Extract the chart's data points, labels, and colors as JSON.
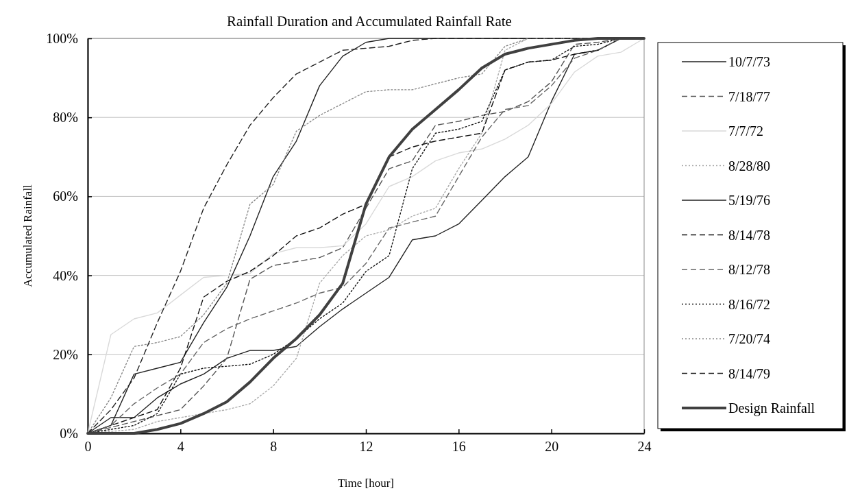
{
  "chart_data": {
    "type": "line",
    "title": "Rainfall Duration and Accumulated Rainfall Rate",
    "xlabel": "Time [hour]",
    "ylabel": "Accumulated Rainfall",
    "x": [
      0,
      1,
      2,
      3,
      4,
      5,
      6,
      7,
      8,
      9,
      10,
      11,
      12,
      13,
      14,
      15,
      16,
      17,
      18,
      19,
      20,
      21,
      22,
      23,
      24
    ],
    "xlim": [
      0,
      24
    ],
    "xticks": [
      0,
      4,
      8,
      12,
      16,
      20,
      24
    ],
    "ylim": [
      0,
      100
    ],
    "yticks": [
      {
        "value": 0,
        "label": "0%"
      },
      {
        "value": 20,
        "label": "20%"
      },
      {
        "value": 40,
        "label": "40%"
      },
      {
        "value": 60,
        "label": "60%"
      },
      {
        "value": 80,
        "label": "80%"
      },
      {
        "value": 100,
        "label": "100%"
      }
    ],
    "grid": "y",
    "legend": "right",
    "marker": "none",
    "series": [
      {
        "name": "10/7/73",
        "color": "#222222",
        "line_style": "solid",
        "values": [
          0,
          4,
          4,
          9,
          12.5,
          15,
          19,
          21,
          21,
          22,
          27,
          31.5,
          35.5,
          39.5,
          49,
          50,
          53,
          59,
          65,
          70,
          84,
          96,
          97,
          100,
          100
        ]
      },
      {
        "name": "7/18/77",
        "color": "#555555",
        "line_style": "dashed",
        "values": [
          0,
          1.5,
          3,
          4.5,
          6,
          12,
          19,
          39,
          42.5,
          43.5,
          44.5,
          47,
          57,
          67,
          69,
          78,
          79,
          80.5,
          81.5,
          84,
          89,
          98.5,
          99,
          100,
          100
        ]
      },
      {
        "name": "7/7/72",
        "color": "#d9d9d9",
        "line_style": "solid",
        "values": [
          0,
          25,
          29,
          30.5,
          35,
          39.5,
          40,
          40.5,
          45.5,
          47,
          47,
          47.5,
          53,
          62.5,
          65,
          69,
          71,
          72,
          74.5,
          78,
          83.5,
          91.5,
          95.5,
          96.5,
          100
        ]
      },
      {
        "name": "8/28/80",
        "color": "#aaaaaa",
        "line_style": "dotted",
        "values": [
          0,
          0.5,
          1,
          3,
          4,
          5,
          6,
          7.5,
          12,
          19,
          38,
          45,
          50,
          51.5,
          55,
          57,
          67,
          76,
          97,
          100,
          100,
          100,
          100,
          100,
          100
        ]
      },
      {
        "name": "5/19/76",
        "color": "#222222",
        "line_style": "solid",
        "values": [
          0,
          2,
          15,
          16.5,
          18,
          28,
          37,
          50,
          65,
          74,
          88,
          95.5,
          99,
          100,
          100,
          100,
          100,
          100,
          100,
          100,
          100,
          100,
          100,
          100,
          100
        ]
      },
      {
        "name": "8/14/78",
        "color": "#111111",
        "line_style": "dashed",
        "values": [
          0,
          2,
          4,
          6,
          16.5,
          34.5,
          38.5,
          41,
          45,
          50,
          52,
          55.5,
          58,
          70,
          72.5,
          74,
          75,
          76,
          92,
          94,
          94.5,
          96,
          97,
          100,
          100
        ]
      },
      {
        "name": "8/12/78",
        "color": "#666666",
        "line_style": "dashed",
        "values": [
          0,
          2,
          7.5,
          11.5,
          15,
          23,
          26.5,
          29,
          31,
          33,
          35.5,
          37,
          43,
          52,
          53.5,
          55,
          65,
          75,
          82,
          83,
          88,
          95,
          97,
          100,
          100
        ]
      },
      {
        "name": "8/16/72",
        "color": "#111111",
        "line_style": "dotted",
        "values": [
          0,
          1,
          2,
          5,
          15,
          16.5,
          17,
          17.5,
          20,
          24,
          29,
          33,
          41,
          45,
          67,
          76,
          77,
          79,
          92,
          94,
          94.5,
          98,
          98.5,
          100,
          100
        ]
      },
      {
        "name": "7/20/74",
        "color": "#888888",
        "line_style": "dotted",
        "values": [
          0,
          9,
          22,
          23,
          24.5,
          30,
          38,
          58,
          63,
          76.5,
          80.5,
          83.5,
          86.5,
          87,
          87,
          88.5,
          90,
          91,
          98,
          100,
          100,
          100,
          100,
          100,
          100
        ]
      },
      {
        "name": "8/14/79",
        "color": "#222222",
        "line_style": "dashed",
        "values": [
          0,
          6,
          14,
          28,
          41,
          57,
          68,
          78,
          85,
          91,
          94,
          97,
          97.5,
          98,
          99.5,
          100,
          100,
          100,
          100,
          100,
          100,
          100,
          100,
          100,
          100
        ]
      },
      {
        "name": "Design Rainfall",
        "color": "#404040",
        "line_style": "solid",
        "values": [
          0,
          0,
          0,
          1,
          2.5,
          5,
          8,
          13,
          19,
          24,
          30,
          38,
          58,
          70,
          77,
          82,
          87,
          92.5,
          96,
          97.5,
          98.5,
          99.5,
          100,
          100,
          100
        ]
      }
    ]
  }
}
